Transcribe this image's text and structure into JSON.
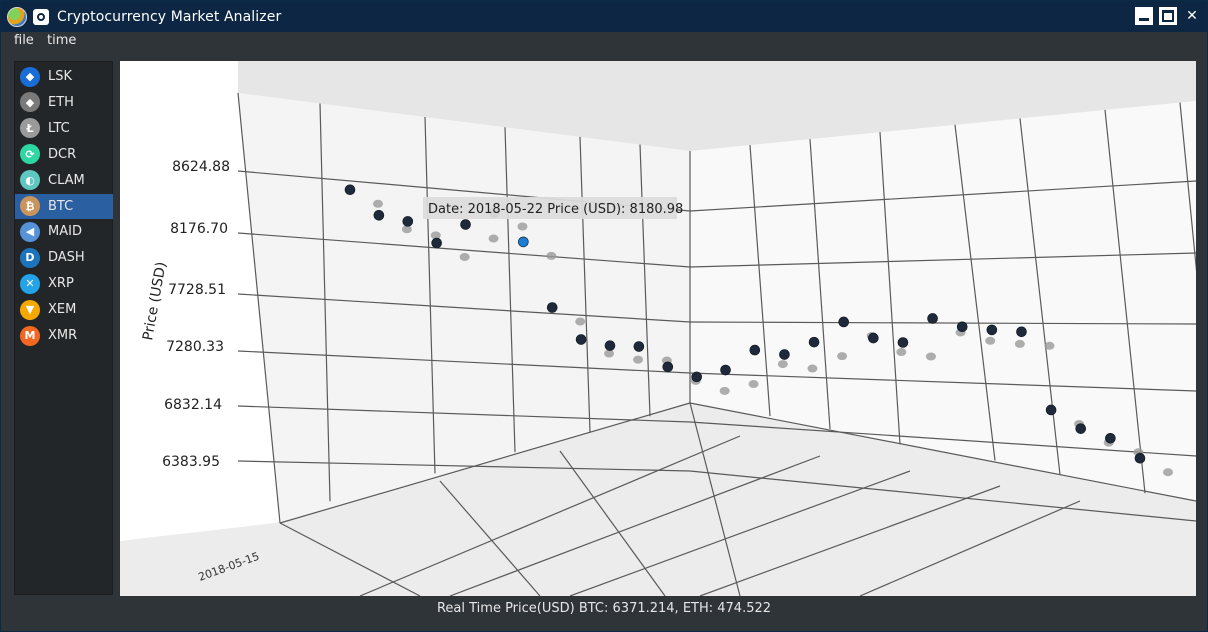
{
  "window": {
    "title": "Cryptocurrency Market Analizer"
  },
  "menu": {
    "items": [
      "file",
      "time"
    ]
  },
  "sidebar": {
    "items": [
      {
        "label": "LSK",
        "icon": "lisk-icon",
        "color": "#1a6dd6"
      },
      {
        "label": "ETH",
        "icon": "ethereum-icon",
        "color": "#7a7a7a"
      },
      {
        "label": "LTC",
        "icon": "litecoin-icon",
        "color": "#9a9a9a"
      },
      {
        "label": "DCR",
        "icon": "decred-icon",
        "color": "#2ed6a1"
      },
      {
        "label": "CLAM",
        "icon": "clam-icon",
        "color": "#5fc7c1"
      },
      {
        "label": "BTC",
        "icon": "bitcoin-icon",
        "color": "#c9955c"
      },
      {
        "label": "MAID",
        "icon": "maidsafe-icon",
        "color": "#5592d7"
      },
      {
        "label": "DASH",
        "icon": "dash-icon",
        "color": "#1c75bc"
      },
      {
        "label": "XRP",
        "icon": "ripple-icon",
        "color": "#23a3e8"
      },
      {
        "label": "XEM",
        "icon": "nem-icon",
        "color": "#f7a800"
      },
      {
        "label": "XMR",
        "icon": "monero-icon",
        "color": "#f26822"
      }
    ],
    "selected": "BTC"
  },
  "chart_data": {
    "type": "scatter",
    "ylabel": "Price (USD)",
    "y_ticks": [
      "8624.88",
      "8176.70",
      "7728.51",
      "7280.33",
      "6832.14",
      "6383.95"
    ],
    "x_tick_visible": "2018-05-15",
    "grid": true,
    "tooltip": "Date: 2018-05-22 Price (USD): 8180.98",
    "highlighted_point": {
      "date": "2018-05-22",
      "price": 8180.98
    },
    "series": [
      {
        "values": [
          8480,
          8300,
          8270,
          8120,
          8280,
          8390,
          8180,
          7690,
          7460,
          7430,
          7440,
          7300,
          7240,
          7310,
          7470,
          7430,
          7520,
          7670,
          7540,
          7500,
          7680,
          7610,
          7580,
          7560,
          6950,
          6800,
          6720,
          6560
        ]
      }
    ],
    "point_color": "#1e2a3a",
    "highlight_color": "#1a7fd4",
    "shadow_color": "#9a9a9a"
  },
  "status": {
    "text": "Real Time Price(USD) BTC: 6371.214, ETH: 474.522"
  }
}
